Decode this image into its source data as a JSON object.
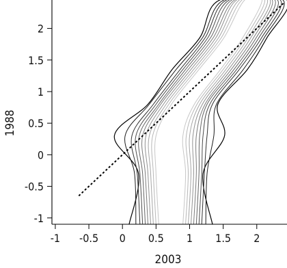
{
  "chart_data": {
    "type": "contour",
    "xlabel": "2003",
    "ylabel": "1988",
    "xlim": [
      -1.05,
      2.45
    ],
    "ylim": [
      -1.1,
      2.45
    ],
    "x_ticks": [
      "-1",
      "-0.5",
      "0",
      "0.5",
      "1",
      "1.5",
      "2"
    ],
    "x_tick_values": [
      -1,
      -0.5,
      0,
      0.5,
      1,
      1.5,
      2
    ],
    "y_ticks": [
      "-1",
      "-0.5",
      "0",
      "0.5",
      "1",
      "1.5",
      "2"
    ],
    "y_tick_values": [
      -1,
      -0.5,
      0,
      0.5,
      1,
      1.5,
      2
    ],
    "reference_line": {
      "style": "dotted",
      "color": "#000000",
      "from": [
        -0.65,
        -0.65
      ],
      "to": [
        2.4,
        2.4
      ]
    },
    "contours": {
      "levels": 10,
      "colors": [
        "#000000",
        "#1a1a1a",
        "#303030",
        "#4a4a4a",
        "#626262",
        "#7a7a7a",
        "#909090",
        "#a4a4a4",
        "#b6b6b6",
        "#c6c6c6"
      ],
      "centerline": [
        [
          0.72,
          -1.1
        ],
        [
          0.72,
          -0.3
        ],
        [
          0.7,
          0.3
        ],
        [
          0.9,
          0.8
        ],
        [
          1.3,
          1.35
        ],
        [
          1.65,
          1.85
        ],
        [
          1.95,
          2.45
        ]
      ],
      "half_widths": [
        [
          0.62,
          0.48,
          0.82,
          0.52,
          0.56,
          0.5,
          0.5
        ],
        [
          0.52,
          0.54,
          0.66,
          0.5,
          0.5,
          0.46,
          0.44
        ],
        [
          0.46,
          0.5,
          0.56,
          0.44,
          0.44,
          0.42,
          0.4
        ],
        [
          0.42,
          0.46,
          0.5,
          0.4,
          0.4,
          0.38,
          0.36
        ],
        [
          0.38,
          0.42,
          0.45,
          0.36,
          0.36,
          0.34,
          0.32
        ],
        [
          0.34,
          0.38,
          0.4,
          0.33,
          0.32,
          0.3,
          0.28
        ],
        [
          0.3,
          0.34,
          0.35,
          0.29,
          0.28,
          0.26,
          0.25
        ],
        [
          0.26,
          0.3,
          0.3,
          0.25,
          0.24,
          0.22,
          0.21
        ],
        [
          0.22,
          0.26,
          0.25,
          0.21,
          0.2,
          0.18,
          0.17
        ],
        [
          0.18,
          0.22,
          0.2,
          0.17,
          0.16,
          0.14,
          0.13
        ]
      ]
    },
    "grid": false,
    "legend": "none"
  }
}
